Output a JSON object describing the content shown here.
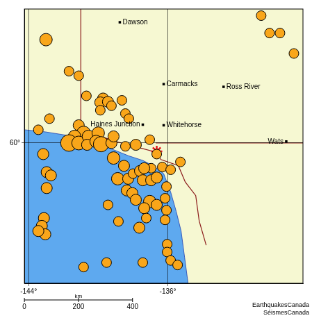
{
  "chart_data": {
    "type": "scatter",
    "xlim": [
      -144.24,
      -128.24
    ],
    "ylim": [
      55.33,
      64.46
    ],
    "xticks": [
      {
        "value": -144,
        "label": "-144°"
      },
      {
        "value": -136,
        "label": "-136°"
      }
    ],
    "yticks": [
      {
        "value": 60,
        "label": "60°"
      }
    ],
    "grid": true,
    "points": {
      "marker": "circle",
      "color": "#f9a61a",
      "x": [
        -143.0,
        -130.16,
        -129.56,
        -128.76,
        -141.68,
        -141.12,
        -140.68,
        -139.72,
        -139.88,
        -139.44,
        -139.88,
        -139.24,
        -138.64,
        -138.44,
        -138.24,
        -142.8,
        -143.44,
        -141.12,
        -140.84,
        -141.36,
        -141.68,
        -141.12,
        -140.56,
        -140.64,
        -140.0,
        -140.12,
        -139.84,
        -139.24,
        -139.12,
        -138.44,
        -137.84,
        -137.04,
        -136.64,
        -136.96,
        -143.16,
        -142.96,
        -142.72,
        -142.96,
        -139.12,
        -138.52,
        -138.88,
        -138.28,
        -138.0,
        -137.6,
        -137.36,
        -137.44,
        -136.96,
        -136.64,
        -136.32,
        -135.84,
        -136.08,
        -135.28,
        -138.36,
        -138.04,
        -137.84,
        -137.04,
        -136.64,
        -137.36,
        -137.24,
        -136.16,
        -136.08,
        -136.16,
        -136.04,
        -136.04,
        -135.84,
        -135.44,
        -143.12,
        -143.24,
        -143.04,
        -143.44,
        -139.44,
        -138.84,
        -137.64,
        -140.84,
        -139.52,
        -137.44,
        -130.64
      ],
      "y": [
        63.44,
        63.66,
        63.66,
        62.98,
        62.39,
        62.24,
        61.57,
        61.48,
        61.35,
        61.37,
        61.09,
        61.24,
        61.42,
        60.98,
        60.81,
        60.81,
        60.44,
        60.59,
        60.33,
        60.22,
        60.0,
        60.0,
        60.22,
        59.94,
        60.33,
        60.05,
        59.96,
        60.0,
        60.22,
        59.89,
        59.94,
        60.11,
        59.63,
        59.16,
        59.63,
        59.03,
        58.92,
        58.5,
        59.5,
        59.24,
        58.81,
        58.81,
        58.98,
        59.07,
        59.16,
        58.76,
        58.76,
        58.85,
        59.2,
        59.11,
        58.55,
        59.37,
        58.42,
        58.33,
        58.11,
        58.05,
        57.94,
        57.83,
        57.5,
        58.16,
        57.76,
        57.44,
        56.63,
        56.37,
        56.09,
        55.94,
        57.5,
        57.24,
        56.96,
        57.07,
        57.94,
        57.39,
        57.18,
        55.87,
        56.02,
        56.02,
        64.24
      ],
      "sizes": [
        9,
        7,
        7,
        7,
        7,
        7,
        7,
        8,
        8,
        8,
        7,
        7,
        7,
        7,
        7,
        7,
        7,
        8,
        10,
        9,
        12,
        10,
        9,
        8,
        9,
        9,
        11,
        8,
        8,
        7,
        8,
        7,
        7,
        7,
        8,
        8,
        8,
        8,
        9,
        8,
        9,
        8,
        7,
        8,
        8,
        8,
        8,
        8,
        7,
        7,
        7,
        7,
        8,
        8,
        8,
        9,
        8,
        8,
        7,
        7,
        7,
        7,
        7,
        7,
        7,
        7,
        8,
        8,
        8,
        8,
        7,
        7,
        8,
        7,
        7,
        7,
        7
      ]
    },
    "star": {
      "marker": "star",
      "color": "#e8161b",
      "x": [
        -136.64
      ],
      "y": [
        59.72
      ]
    },
    "cities": {
      "marker": "square",
      "color": "#000000",
      "labels": [
        "Dawson",
        "Carmacks",
        "Ross River",
        "Whitehorse",
        "Haines Junction",
        "Wats"
      ],
      "x": [
        -138.76,
        -136.24,
        -132.8,
        -136.24,
        -137.44,
        -129.2
      ],
      "y": [
        64.02,
        61.96,
        61.87,
        60.59,
        60.61,
        60.05
      ]
    },
    "ocean": [
      [
        -144.24,
        60.44
      ],
      [
        -143.04,
        60.37
      ],
      [
        -141.84,
        60.26
      ],
      [
        -140.64,
        60.11
      ],
      [
        -139.44,
        59.85
      ],
      [
        -138.24,
        59.57
      ],
      [
        -137.44,
        59.42
      ],
      [
        -136.84,
        59.24
      ],
      [
        -136.24,
        58.98
      ],
      [
        -135.84,
        58.37
      ],
      [
        -135.52,
        57.72
      ],
      [
        -135.24,
        57.07
      ],
      [
        -135.04,
        56.2
      ],
      [
        -134.84,
        55.33
      ],
      [
        -144.24,
        55.33
      ]
    ],
    "borders": [
      [
        [
          -141.0,
          64.46
        ],
        [
          -141.0,
          60.3
        ],
        [
          -140.0,
          60.25
        ],
        [
          -139.0,
          60.05
        ],
        [
          -137.7,
          59.85
        ],
        [
          -136.7,
          59.7
        ],
        [
          -136.4,
          59.45
        ],
        [
          -135.4,
          59.25
        ],
        [
          -135.0,
          58.7
        ],
        [
          -134.4,
          58.25
        ],
        [
          -134.2,
          57.4
        ],
        [
          -133.8,
          56.6
        ]
      ],
      [
        [
          -136.7,
          60.0
        ],
        [
          -128.24,
          60.0
        ]
      ]
    ],
    "scale_bar": {
      "label": "km",
      "ticks": [
        0,
        200,
        400
      ]
    },
    "credits": [
      "EarthquakesCanada",
      "SéismesCanada"
    ]
  }
}
